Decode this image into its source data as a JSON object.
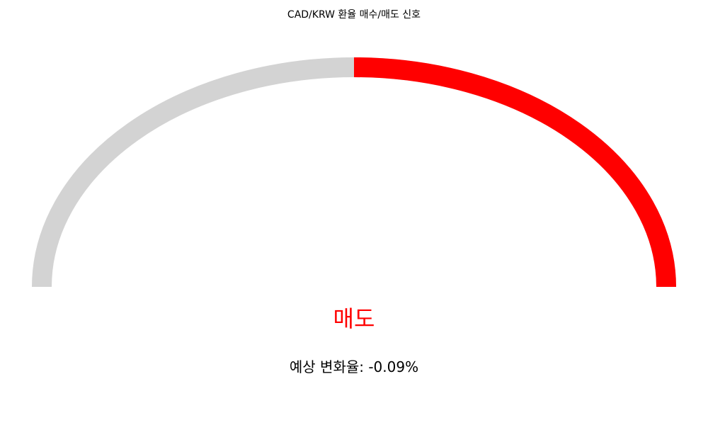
{
  "chart_data": {
    "type": "gauge",
    "title": "CAD/KRW 환율 매수/매도 신호",
    "signal": "매도",
    "change_text": "예상 변화율: -0.09%",
    "change_percent": -0.09,
    "highlighted_fraction": 0.5,
    "highlighted_side": "right",
    "colors": {
      "track": "#d3d3d3",
      "highlight": "#ff0000",
      "signal_text": "#ff0000"
    }
  }
}
